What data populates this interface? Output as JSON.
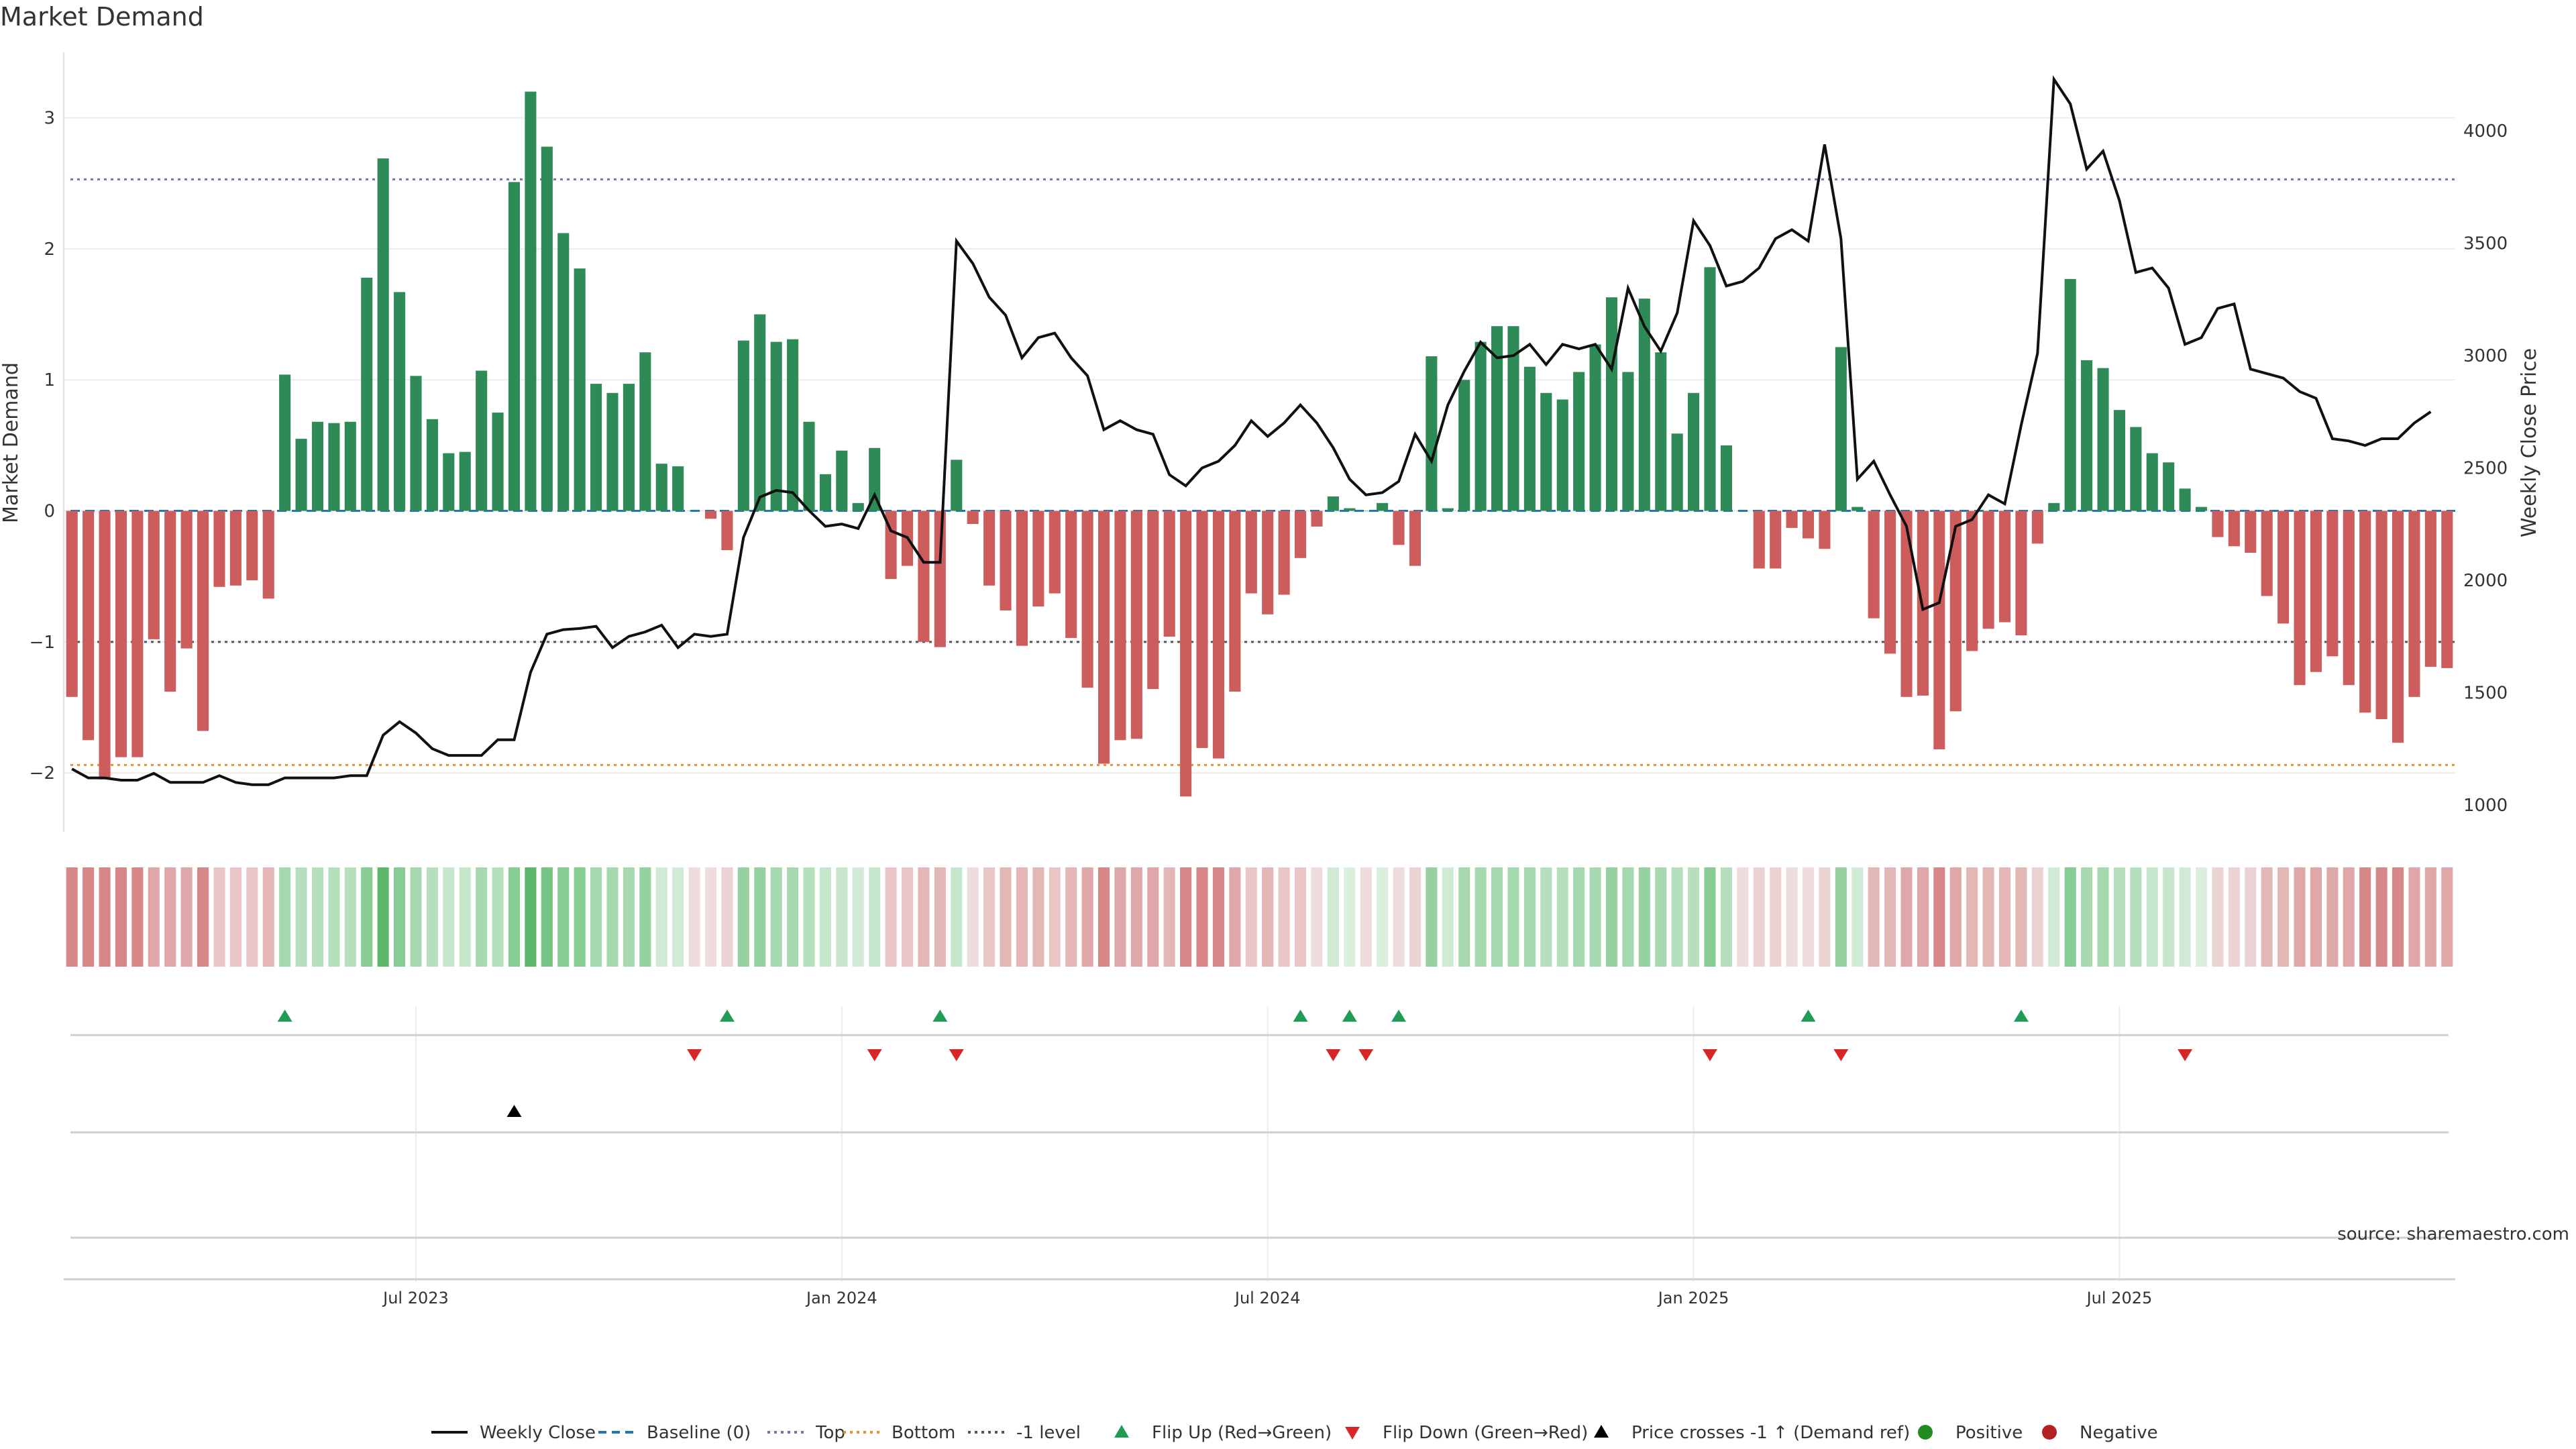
{
  "title": "Market Demand",
  "source": "source: sharemaestro.com",
  "chart_data": {
    "type": "bar",
    "title": "Market Demand",
    "ylabel_left": "Market Demand",
    "ylabel_right": "Weekly Close Price",
    "ylim_left": [
      -2.45,
      3.5
    ],
    "ylim_right": [
      880,
      4350
    ],
    "yticks_left": [
      -2,
      -1,
      0,
      1,
      2,
      3
    ],
    "yticks_right": [
      1000,
      1500,
      2000,
      2500,
      3000,
      3500,
      4000
    ],
    "ytick_labels_left": [
      "−2",
      "−1",
      "0",
      "1",
      "2",
      "3"
    ],
    "ytick_labels_right": [
      "1000",
      "1500",
      "2000",
      "2500",
      "3000",
      "3500",
      "4000"
    ],
    "x_tick_labels": [
      "Jul 2023",
      "Jan 2024",
      "Jul 2024",
      "Jan 2025",
      "Jul 2025"
    ],
    "x_tick_index": [
      21,
      47,
      73,
      99,
      125
    ],
    "grid": true,
    "legend_position": "bottom",
    "reference_lines": {
      "top": 2.53,
      "minus_one": -1.0,
      "bottom": -1.94,
      "baseline": 0
    },
    "demand": [
      -1.42,
      -1.75,
      -2.05,
      -1.88,
      -1.88,
      -0.98,
      -1.38,
      -1.05,
      -1.68,
      -0.58,
      -0.57,
      -0.53,
      -0.67,
      1.04,
      0.55,
      0.68,
      0.67,
      0.68,
      1.78,
      2.69,
      1.67,
      1.03,
      0.7,
      0.44,
      0.45,
      1.07,
      0.75,
      2.51,
      3.2,
      2.78,
      2.12,
      1.85,
      0.97,
      0.9,
      0.97,
      1.21,
      0.36,
      0.34,
      0.0,
      -0.06,
      -0.3,
      1.3,
      1.5,
      1.29,
      1.31,
      0.68,
      0.28,
      0.46,
      0.06,
      0.48,
      -0.52,
      -0.42,
      -1.0,
      -1.04,
      0.39,
      -0.1,
      -0.57,
      -0.76,
      -1.03,
      -0.73,
      -0.63,
      -0.97,
      -1.35,
      -1.93,
      -1.75,
      -1.74,
      -1.36,
      -0.96,
      -2.18,
      -1.81,
      -1.89,
      -1.38,
      -0.63,
      -0.79,
      -0.64,
      -0.36,
      -0.12,
      0.11,
      0.02,
      0.0,
      0.06,
      -0.26,
      -0.42,
      1.18,
      0.02,
      1.0,
      1.29,
      1.41,
      1.41,
      1.1,
      0.9,
      0.85,
      1.06,
      1.27,
      1.63,
      1.06,
      1.62,
      1.21,
      0.59,
      0.9,
      1.86,
      0.5,
      0.0,
      -0.44,
      -0.44,
      -0.13,
      -0.21,
      -0.29,
      1.25,
      0.03,
      -0.82,
      -1.09,
      -1.42,
      -1.41,
      -1.82,
      -1.53,
      -1.07,
      -0.9,
      -0.85,
      -0.95,
      -0.25,
      0.06,
      1.77,
      1.15,
      1.09,
      0.77,
      0.64,
      0.44,
      0.37,
      0.17,
      0.03,
      -0.2,
      -0.27,
      -0.32,
      -0.65,
      -0.86,
      -1.33,
      -1.23,
      -1.11,
      -1.33,
      -1.54,
      -1.59,
      -1.77,
      -1.42,
      -1.19,
      -1.2
    ],
    "weekly_close": [
      1160,
      1120,
      1120,
      1110,
      1110,
      1140,
      1100,
      1100,
      1100,
      1130,
      1100,
      1090,
      1090,
      1120,
      1120,
      1120,
      1120,
      1130,
      1130,
      1310,
      1370,
      1320,
      1250,
      1220,
      1220,
      1220,
      1290,
      1290,
      1590,
      1760,
      1780,
      1785,
      1795,
      1700,
      1750,
      1770,
      1800,
      1700,
      1760,
      1750,
      1760,
      2190,
      2370,
      2400,
      2390,
      2310,
      2240,
      2250,
      2230,
      2380,
      2220,
      2190,
      2080,
      2080,
      3510,
      3410,
      3260,
      3180,
      2990,
      3080,
      3100,
      2990,
      2910,
      2670,
      2710,
      2670,
      2650,
      2470,
      2420,
      2500,
      2530,
      2600,
      2710,
      2640,
      2700,
      2780,
      2700,
      2590,
      2450,
      2380,
      2390,
      2440,
      2650,
      2530,
      2780,
      2930,
      3060,
      2990,
      3000,
      3050,
      2960,
      3050,
      3030,
      3050,
      2940,
      3300,
      3130,
      3020,
      3190,
      3600,
      3490,
      3310,
      3330,
      3390,
      3520,
      3560,
      3510,
      3940,
      3520,
      2450,
      2530,
      2380,
      2240,
      1870,
      1900,
      2240,
      2270,
      2380,
      2340,
      2690,
      3010,
      4230,
      4120,
      3830,
      3910,
      3690,
      3370,
      3390,
      3300,
      3050,
      3080,
      3210,
      3230,
      2940,
      2920,
      2900,
      2840,
      2810,
      2630,
      2620,
      2600,
      2630,
      2630,
      2700,
      2750
    ],
    "shade_hex": [
      "#d78787",
      "#d78787",
      "#d78787",
      "#d78787",
      "#d78787",
      "#dfa7a7",
      "#dfa7a7",
      "#dfa7a7",
      "#d78787",
      "#eac6c6",
      "#eac6c6",
      "#eac6c6",
      "#e4b7b7",
      "#a6d9b0",
      "#b6e0bd",
      "#b6e0bd",
      "#b6e0bd",
      "#b6e0bd",
      "#86cc93",
      "#5cb869",
      "#86cc93",
      "#a6d9b0",
      "#b6e0bd",
      "#c6e7cc",
      "#c6e7cc",
      "#a6d9b0",
      "#b6e0bd",
      "#86cc93",
      "#5cb869",
      "#75c483",
      "#86cc93",
      "#86cc93",
      "#a6d9b0",
      "#a6d9b0",
      "#a6d9b0",
      "#96d2a1",
      "#d0ead5",
      "#d0ead5",
      "#efdcdc",
      "#efdcdc",
      "#ecd3d3",
      "#96d2a1",
      "#96d2a1",
      "#a6d9b0",
      "#a6d9b0",
      "#b6e0bd",
      "#c6e7cc",
      "#c6e7cc",
      "#d0ead5",
      "#c6e7cc",
      "#eac6c6",
      "#eac6c6",
      "#e4b7b7",
      "#e4b7b7",
      "#c6e7cc",
      "#efdcdc",
      "#eac6c6",
      "#e4b7b7",
      "#e4b7b7",
      "#e4b7b7",
      "#eac6c6",
      "#e4b7b7",
      "#dfa7a7",
      "#d78787",
      "#dfa7a7",
      "#dfa7a7",
      "#dfa7a7",
      "#e4b7b7",
      "#d78787",
      "#d78787",
      "#d78787",
      "#dfa7a7",
      "#eac6c6",
      "#e4b7b7",
      "#eac6c6",
      "#eac6c6",
      "#efdcdc",
      "#d0ead5",
      "#dbefdf",
      "#efdcdc",
      "#dbefdf",
      "#efdcdc",
      "#ecd3d3",
      "#96d2a1",
      "#d0ead5",
      "#a6d9b0",
      "#a6d9b0",
      "#a6d9b0",
      "#a6d9b0",
      "#a6d9b0",
      "#b6e0bd",
      "#b6e0bd",
      "#a6d9b0",
      "#a6d9b0",
      "#96d2a1",
      "#a6d9b0",
      "#96d2a1",
      "#a6d9b0",
      "#b6e0bd",
      "#b6e0bd",
      "#86cc93",
      "#b6e0bd",
      "#efdcdc",
      "#ecd3d3",
      "#ecd3d3",
      "#efdcdc",
      "#efdcdc",
      "#ecd3d3",
      "#96d2a1",
      "#d0ead5",
      "#e4b7b7",
      "#e4b7b7",
      "#dfa7a7",
      "#dfa7a7",
      "#d78787",
      "#dfa7a7",
      "#e4b7b7",
      "#e4b7b7",
      "#e4b7b7",
      "#e4b7b7",
      "#ecd3d3",
      "#d0ead5",
      "#86cc93",
      "#a6d9b0",
      "#a6d9b0",
      "#b6e0bd",
      "#b6e0bd",
      "#c6e7cc",
      "#c6e7cc",
      "#d0ead5",
      "#dbefdf",
      "#ecd3d3",
      "#ecd3d3",
      "#ecd3d3",
      "#e4b7b7",
      "#e4b7b7",
      "#dfa7a7",
      "#dfa7a7",
      "#dfa7a7",
      "#dfa7a7",
      "#d78787",
      "#d78787",
      "#d78787",
      "#dfa7a7",
      "#dfa7a7",
      "#dfa7a7"
    ],
    "flip_up_index": [
      13,
      40,
      53,
      75,
      78,
      81,
      106,
      119
    ],
    "flip_down_index": [
      38,
      49,
      54,
      77,
      79,
      100,
      108,
      129
    ],
    "price_cross_index": [
      27
    ],
    "colors": {
      "positive_bar": "#2e8b57",
      "negative_bar": "#cd5c5c",
      "price_line": "#111111",
      "baseline": "#1f77b4",
      "top_line": "#7b6fa8",
      "bottom_line": "#e6922e",
      "minus_one_line": "#555555",
      "flip_up": "#1f9d55",
      "flip_down": "#d62728",
      "price_cross": "#000000",
      "positive_dot": "#228b22",
      "negative_dot": "#b22222"
    }
  },
  "legend": [
    {
      "label": "Weekly Close",
      "icon": "solid-line-icon"
    },
    {
      "label": "Baseline (0)",
      "icon": "dashed-line-icon"
    },
    {
      "label": "Top",
      "icon": "dotted-line-icon"
    },
    {
      "label": "Bottom",
      "icon": "dotted-line-icon"
    },
    {
      "label": "-1 level",
      "icon": "dotted-line-icon"
    },
    {
      "label": "Flip Up (Red→Green)",
      "icon": "triangle-up-icon"
    },
    {
      "label": "Flip Down (Green→Red)",
      "icon": "triangle-down-icon"
    },
    {
      "label": "Price crosses -1 ↑ (Demand ref)",
      "icon": "triangle-up-icon"
    },
    {
      "label": "Positive",
      "icon": "dot-icon"
    },
    {
      "label": "Negative",
      "icon": "dot-icon"
    }
  ]
}
